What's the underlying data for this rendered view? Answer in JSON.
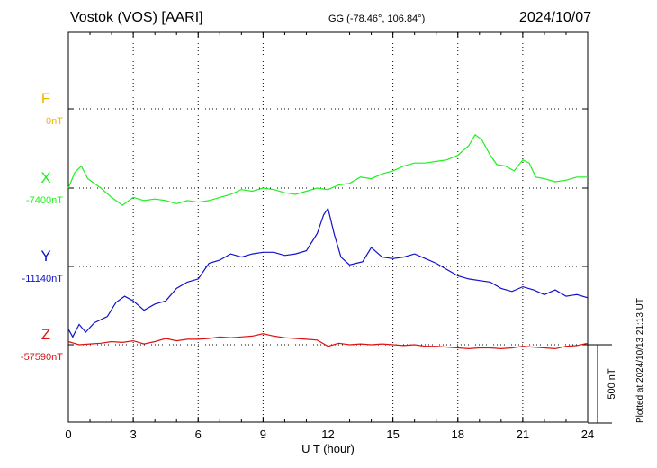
{
  "header": {
    "station": "Vostok (VOS)  [AARI]",
    "coords": "GG (-78.46°, 106.84°)",
    "date": "2024/10/07"
  },
  "credit": "Plotted at 2024/10/13 21:13 UT",
  "chart_data": {
    "type": "line",
    "xlabel": "U T (hour)",
    "xlim": [
      0,
      24
    ],
    "xticks": [
      0,
      3,
      6,
      9,
      12,
      15,
      18,
      21,
      24
    ],
    "scale_bar": {
      "label": "500 nT",
      "value": 500
    },
    "grid": true,
    "series": [
      {
        "name": "F",
        "baseline_label": "0nT",
        "color": "#f0b400",
        "x": [],
        "y": []
      },
      {
        "name": "X",
        "baseline_label": "-7400nT",
        "color": "#22ee22",
        "x": [
          0,
          0.3,
          0.6,
          0.9,
          1.5,
          2.0,
          2.5,
          3.0,
          3.5,
          4.0,
          4.5,
          5.0,
          5.5,
          6.0,
          6.5,
          7.0,
          7.5,
          8.0,
          8.5,
          9.0,
          9.5,
          10.0,
          10.5,
          11.0,
          11.5,
          12.0,
          12.5,
          13.0,
          13.5,
          14.0,
          14.5,
          15.0,
          15.5,
          16.0,
          16.5,
          17.0,
          17.5,
          18.0,
          18.5,
          18.8,
          19.1,
          19.5,
          19.8,
          20.2,
          20.6,
          21.0,
          21.3,
          21.6,
          22.0,
          22.5,
          23.0,
          23.5,
          24.0
        ],
        "y": [
          -7400,
          -7300,
          -7260,
          -7340,
          -7400,
          -7460,
          -7510,
          -7460,
          -7480,
          -7470,
          -7480,
          -7500,
          -7480,
          -7490,
          -7480,
          -7460,
          -7440,
          -7410,
          -7420,
          -7400,
          -7410,
          -7430,
          -7440,
          -7420,
          -7400,
          -7410,
          -7380,
          -7370,
          -7330,
          -7340,
          -7310,
          -7290,
          -7260,
          -7240,
          -7240,
          -7230,
          -7220,
          -7190,
          -7130,
          -7060,
          -7090,
          -7190,
          -7250,
          -7260,
          -7290,
          -7220,
          -7240,
          -7330,
          -7340,
          -7360,
          -7350,
          -7330,
          -7330
        ]
      },
      {
        "name": "Y",
        "baseline_label": "-11140nT",
        "color": "#1111cc",
        "x": [
          0,
          0.2,
          0.5,
          0.8,
          1.2,
          1.8,
          2.2,
          2.6,
          3.0,
          3.5,
          4.0,
          4.5,
          5.0,
          5.5,
          6.0,
          6.5,
          7.0,
          7.5,
          8.0,
          8.5,
          9.0,
          9.5,
          10.0,
          10.5,
          11.0,
          11.5,
          11.8,
          12.0,
          12.3,
          12.6,
          13.0,
          13.3,
          13.6,
          14.0,
          14.5,
          15.0,
          15.5,
          16.0,
          16.5,
          17.0,
          17.5,
          18.0,
          18.5,
          19.0,
          19.5,
          20.0,
          20.5,
          21.0,
          21.5,
          22.0,
          22.5,
          23.0,
          23.5,
          24.0
        ],
        "y": [
          -11540,
          -11590,
          -11510,
          -11560,
          -11500,
          -11460,
          -11370,
          -11330,
          -11360,
          -11420,
          -11380,
          -11360,
          -11280,
          -11240,
          -11220,
          -11120,
          -11100,
          -11060,
          -11080,
          -11060,
          -11050,
          -11050,
          -11070,
          -11060,
          -11040,
          -10930,
          -10810,
          -10770,
          -10940,
          -11080,
          -11130,
          -11120,
          -11110,
          -11020,
          -11080,
          -11090,
          -11080,
          -11060,
          -11090,
          -11120,
          -11160,
          -11200,
          -11220,
          -11230,
          -11240,
          -11280,
          -11300,
          -11270,
          -11290,
          -11320,
          -11290,
          -11330,
          -11320,
          -11340
        ]
      },
      {
        "name": "Z",
        "baseline_label": "-57590nT",
        "color": "#dd1111",
        "x": [
          0,
          0.5,
          1.0,
          1.5,
          2.0,
          2.5,
          3.0,
          3.5,
          4.0,
          4.5,
          5.0,
          5.5,
          6.0,
          6.5,
          7.0,
          7.5,
          8.0,
          8.5,
          9.0,
          9.5,
          10.0,
          10.5,
          11.0,
          11.5,
          12.0,
          12.5,
          13.0,
          13.5,
          14.0,
          14.5,
          15.0,
          15.5,
          16.0,
          16.5,
          17.0,
          17.5,
          18.0,
          18.5,
          19.0,
          19.5,
          20.0,
          20.5,
          21.0,
          21.5,
          22.0,
          22.5,
          23.0,
          23.5,
          24.0
        ],
        "y": [
          -57570,
          -57590,
          -57585,
          -57580,
          -57570,
          -57575,
          -57565,
          -57585,
          -57570,
          -57550,
          -57565,
          -57555,
          -57555,
          -57550,
          -57540,
          -57545,
          -57540,
          -57535,
          -57520,
          -57535,
          -57545,
          -57550,
          -57555,
          -57560,
          -57600,
          -57580,
          -57590,
          -57585,
          -57590,
          -57585,
          -57590,
          -57595,
          -57590,
          -57600,
          -57600,
          -57605,
          -57610,
          -57615,
          -57610,
          -57610,
          -57615,
          -57610,
          -57600,
          -57605,
          -57610,
          -57615,
          -57600,
          -57595,
          -57580
        ]
      }
    ]
  }
}
